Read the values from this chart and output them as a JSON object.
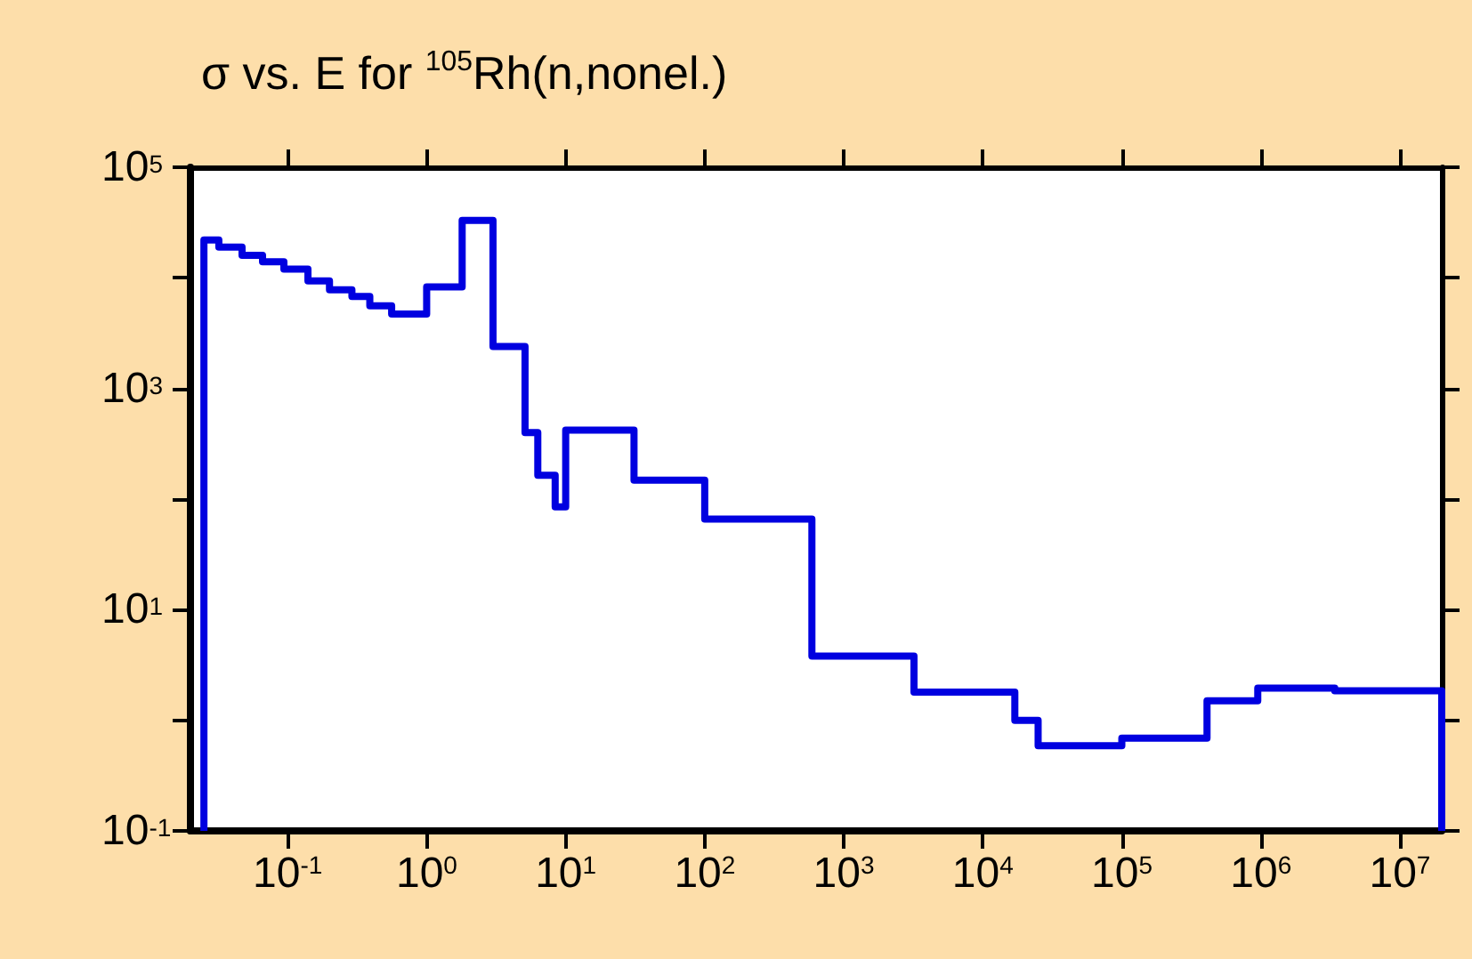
{
  "chart_data": {
    "type": "step",
    "title": "σ vs. E for $^{105}$Rh(n,nonel.)",
    "x": [
      0.025,
      0.025,
      0.032,
      0.047,
      0.066,
      0.094,
      0.14,
      0.2,
      0.29,
      0.39,
      0.56,
      1.0,
      1.8,
      3.0,
      5.1,
      6.3,
      8.4,
      10,
      31,
      100,
      590,
      3200,
      17000,
      25000,
      100000,
      410000,
      950000,
      3400000,
      20000000,
      20000000
    ],
    "series": [
      {
        "color": "#0000e0",
        "values": [
          0.1,
          22000,
          19000,
          16000,
          14000,
          12000,
          9400,
          7800,
          6800,
          5600,
          4700,
          8300,
          33000,
          2400,
          400,
          164,
          85,
          420,
          148,
          66,
          3.8,
          1.8,
          1.0,
          0.59,
          0.69,
          1.5,
          1.95,
          1.85,
          1.85,
          0.1
        ]
      }
    ],
    "log": "xy",
    "xlim": [
      0.02,
      20000000
    ],
    "ylim": [
      0.1,
      100000
    ],
    "xticks": [
      {
        "value": 0.1,
        "label": "10$^{-1}$"
      },
      {
        "value": 1,
        "label": "10$^{0}$"
      },
      {
        "value": 10,
        "label": "10$^{1}$"
      },
      {
        "value": 100,
        "label": "10$^{2}$"
      },
      {
        "value": 1000,
        "label": "10$^{3}$"
      },
      {
        "value": 10000,
        "label": "10$^{4}$"
      },
      {
        "value": 100000,
        "label": "10$^{5}$"
      },
      {
        "value": 1000000,
        "label": "10$^{6}$"
      },
      {
        "value": 10000000,
        "label": "10$^{7}$"
      }
    ],
    "yticks": [
      {
        "value": 0.1,
        "label": "10$^{-1}$"
      },
      {
        "value": 1,
        "label": null
      },
      {
        "value": 10,
        "label": "10$^{1}$"
      },
      {
        "value": 100,
        "label": null
      },
      {
        "value": 1000,
        "label": "10$^{3}$"
      },
      {
        "value": 10000,
        "label": null
      },
      {
        "value": 100000,
        "label": "10$^{5}$"
      }
    ],
    "grid": false,
    "marker": "none",
    "line_style": "solid"
  }
}
